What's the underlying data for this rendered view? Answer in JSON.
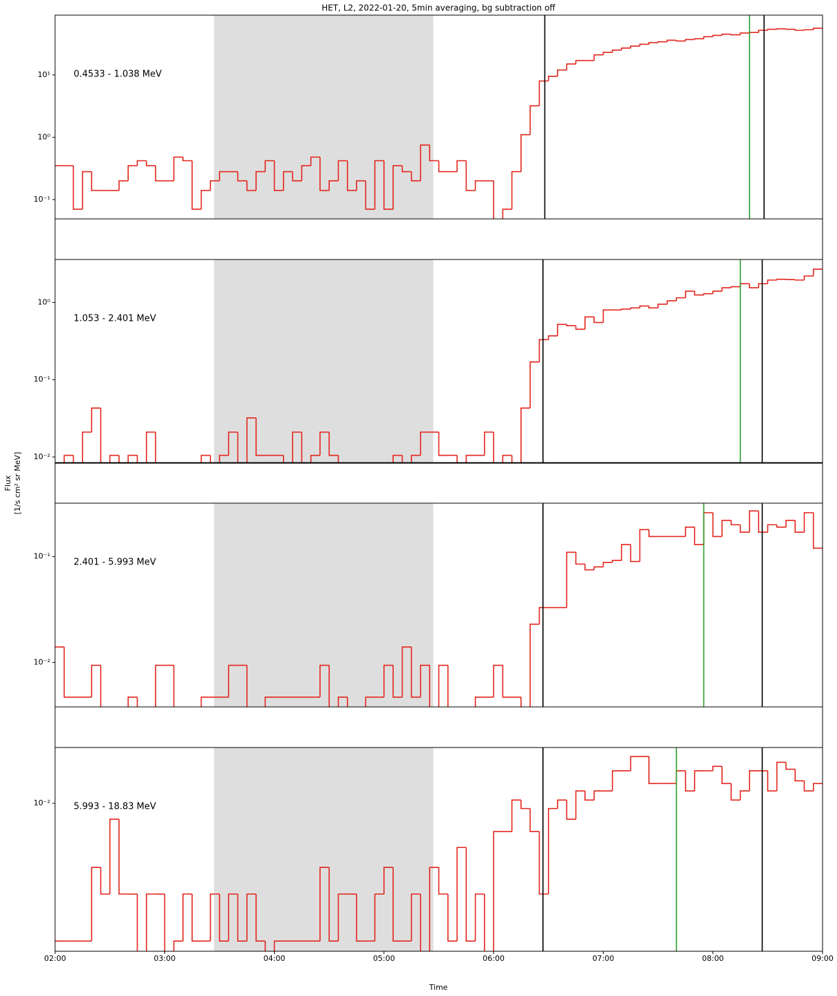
{
  "chart_data": {
    "type": "step",
    "title": "HET, L2, 2022-01-20, 5min averaging, bg subtraction off",
    "xlabel": "Time",
    "ylabel": [
      "Flux",
      "[1/s cm² sr MeV]"
    ],
    "log_y": true,
    "line_color": "#e3241b",
    "span_color": "#dedede",
    "span": [
      "03:27",
      "05:27"
    ],
    "xlim": [
      "02:00",
      "09:00"
    ],
    "xticks": [
      "02:00",
      "03:00",
      "04:00",
      "05:00",
      "06:00",
      "07:00",
      "08:00",
      "09:00"
    ],
    "x": [
      "02:00",
      "02:05",
      "02:10",
      "02:15",
      "02:20",
      "02:25",
      "02:30",
      "02:35",
      "02:40",
      "02:45",
      "02:50",
      "02:55",
      "03:00",
      "03:05",
      "03:10",
      "03:15",
      "03:20",
      "03:25",
      "03:30",
      "03:35",
      "03:40",
      "03:45",
      "03:50",
      "03:55",
      "04:00",
      "04:05",
      "04:10",
      "04:15",
      "04:20",
      "04:25",
      "04:30",
      "04:35",
      "04:40",
      "04:45",
      "04:50",
      "04:55",
      "05:00",
      "05:05",
      "05:10",
      "05:15",
      "05:20",
      "05:25",
      "05:30",
      "05:35",
      "05:40",
      "05:45",
      "05:50",
      "05:55",
      "06:00",
      "06:05",
      "06:10",
      "06:15",
      "06:20",
      "06:25",
      "06:30",
      "06:35",
      "06:40",
      "06:45",
      "06:50",
      "06:55",
      "07:00",
      "07:05",
      "07:10",
      "07:15",
      "07:20",
      "07:25",
      "07:30",
      "07:35",
      "07:40",
      "07:45",
      "07:50",
      "07:55",
      "08:00",
      "08:05",
      "08:10",
      "08:15",
      "08:20",
      "08:25",
      "08:30",
      "08:35",
      "08:40",
      "08:45",
      "08:50",
      "08:55"
    ],
    "panels": [
      {
        "label": "0.4533 - 1.038 MeV",
        "ylim": [
          0.049,
          91
        ],
        "yticks": [
          {
            "value": 0.1,
            "label": "10⁻¹"
          },
          {
            "value": 1,
            "label": "10⁰"
          },
          {
            "value": 10,
            "label": "10¹"
          }
        ],
        "vlines": [
          {
            "time": "06:28",
            "color": "#000000"
          },
          {
            "time": "08:20",
            "color": "#2a9d2a"
          },
          {
            "time": "08:28",
            "color": "#000000"
          }
        ],
        "values": [
          0.35,
          0.35,
          0.07,
          0.28,
          0.14,
          0.14,
          0.14,
          0.2,
          0.35,
          0.42,
          0.35,
          0.2,
          0.2,
          0.48,
          0.42,
          0.07,
          0.14,
          0.2,
          0.28,
          0.28,
          0.2,
          0.14,
          0.28,
          0.42,
          0.14,
          0.28,
          0.2,
          0.35,
          0.48,
          0.14,
          0.2,
          0.42,
          0.14,
          0.2,
          0.07,
          0.42,
          0.07,
          0.35,
          0.28,
          0.2,
          0.75,
          0.42,
          0.28,
          0.28,
          0.42,
          0.14,
          0.2,
          0.2,
          0,
          0.07,
          0.28,
          1.1,
          3.2,
          8,
          9.5,
          12,
          15,
          17,
          17,
          21,
          23,
          25,
          27,
          29,
          31,
          33,
          34,
          36,
          35,
          37,
          38,
          41,
          43,
          45,
          44,
          47,
          48,
          52,
          54,
          55,
          54,
          52,
          53,
          56
        ]
      },
      {
        "label": "1.053 - 2.401 MeV",
        "ylim": [
          0.0083,
          3.6
        ],
        "yticks": [
          {
            "value": 0.01,
            "label": "10⁻²"
          },
          {
            "value": 0.1,
            "label": "10⁻¹"
          },
          {
            "value": 1,
            "label": "10⁰"
          }
        ],
        "vlines": [
          {
            "time": "06:27",
            "color": "#000000"
          },
          {
            "time": "08:15",
            "color": "#2a9d2a"
          },
          {
            "time": "08:27",
            "color": "#000000"
          }
        ],
        "values": [
          0,
          0.0105,
          0,
          0.021,
          0.043,
          0,
          0.0105,
          0,
          0.0105,
          0,
          0.021,
          0,
          0,
          0,
          0,
          0,
          0.0105,
          0,
          0.0105,
          0.021,
          0,
          0.032,
          0.0105,
          0.0105,
          0.0105,
          0,
          0.021,
          0,
          0.0105,
          0.021,
          0.0105,
          0,
          0,
          0,
          0,
          0,
          0,
          0.0105,
          0,
          0.0105,
          0.021,
          0.021,
          0.0105,
          0.0105,
          0,
          0.0105,
          0.0105,
          0.021,
          0,
          0.0105,
          0,
          0.043,
          0.17,
          0.33,
          0.37,
          0.52,
          0.5,
          0.45,
          0.65,
          0.55,
          0.8,
          0.8,
          0.82,
          0.85,
          0.9,
          0.85,
          0.95,
          1.05,
          1.15,
          1.4,
          1.25,
          1.3,
          1.4,
          1.55,
          1.6,
          1.75,
          1.55,
          1.75,
          1.95,
          2.0,
          1.98,
          1.95,
          2.2,
          2.7
        ]
      },
      {
        "label": "2.401 - 5.993 MeV",
        "ylim": [
          0.0038,
          0.32
        ],
        "yticks": [
          {
            "value": 0.01,
            "label": "10⁻²"
          },
          {
            "value": 0.1,
            "label": "10⁻¹"
          }
        ],
        "vlines": [
          {
            "time": "06:27",
            "color": "#000000"
          },
          {
            "time": "07:55",
            "color": "#2a9d2a"
          },
          {
            "time": "08:27",
            "color": "#000000"
          }
        ],
        "values": [
          0.014,
          0.0047,
          0.0047,
          0.0047,
          0.0094,
          0,
          0,
          0,
          0.0047,
          0,
          0,
          0.0094,
          0.0094,
          0,
          0,
          0,
          0.0047,
          0.0047,
          0.0047,
          0.0094,
          0.0094,
          0,
          0,
          0.0047,
          0.0047,
          0.0047,
          0.0047,
          0.0047,
          0.0047,
          0.0094,
          0,
          0.0047,
          0,
          0,
          0.0047,
          0.0047,
          0.0094,
          0.0047,
          0.014,
          0.0047,
          0.0094,
          0,
          0.0094,
          0,
          0,
          0,
          0.0047,
          0.0047,
          0.0094,
          0.0047,
          0.0047,
          0,
          0.023,
          0.033,
          0.033,
          0.033,
          0.11,
          0.085,
          0.075,
          0.08,
          0.088,
          0.092,
          0.13,
          0.09,
          0.18,
          0.155,
          0.155,
          0.155,
          0.155,
          0.19,
          0.13,
          0.26,
          0.155,
          0.22,
          0.2,
          0.17,
          0.27,
          0.17,
          0.2,
          0.19,
          0.22,
          0.17,
          0.26,
          0.12
        ]
      },
      {
        "label": "5.993 - 18.83 MeV",
        "ylim": [
          0.00069,
          0.0274
        ],
        "yticks": [
          {
            "value": 0.01,
            "label": "10⁻²"
          }
        ],
        "vlines": [
          {
            "time": "06:27",
            "color": "#000000"
          },
          {
            "time": "07:40",
            "color": "#2a9d2a"
          },
          {
            "time": "08:27",
            "color": "#000000"
          }
        ],
        "values": [
          0.00083,
          0.00083,
          0.00083,
          0.00083,
          0.00314,
          0.00194,
          0.0075,
          0.00194,
          0.00194,
          0,
          0.00194,
          0.00194,
          0,
          0.00083,
          0.00194,
          0.00083,
          0.00083,
          0.00194,
          0.00083,
          0.00194,
          0.00083,
          0.00194,
          0.00083,
          0,
          0.00083,
          0.00083,
          0.00083,
          0.00083,
          0.00083,
          0.00314,
          0.00083,
          0.00194,
          0.00194,
          0.00083,
          0.00083,
          0.00194,
          0.00314,
          0.00083,
          0.00083,
          0.00194,
          0,
          0.00314,
          0.00194,
          0.00083,
          0.0045,
          0.00083,
          0.00194,
          0,
          0.006,
          0.006,
          0.0106,
          0.0091,
          0.006,
          0.00194,
          0.0091,
          0.0106,
          0.0075,
          0.0125,
          0.0106,
          0.0125,
          0.0125,
          0.018,
          0.018,
          0.0233,
          0.0233,
          0.0143,
          0.0143,
          0.0143,
          0.018,
          0.0125,
          0.018,
          0.018,
          0.0195,
          0.0143,
          0.0106,
          0.0125,
          0.018,
          0.018,
          0.0125,
          0.021,
          0.0185,
          0.015,
          0.0125,
          0.0143
        ]
      }
    ]
  }
}
